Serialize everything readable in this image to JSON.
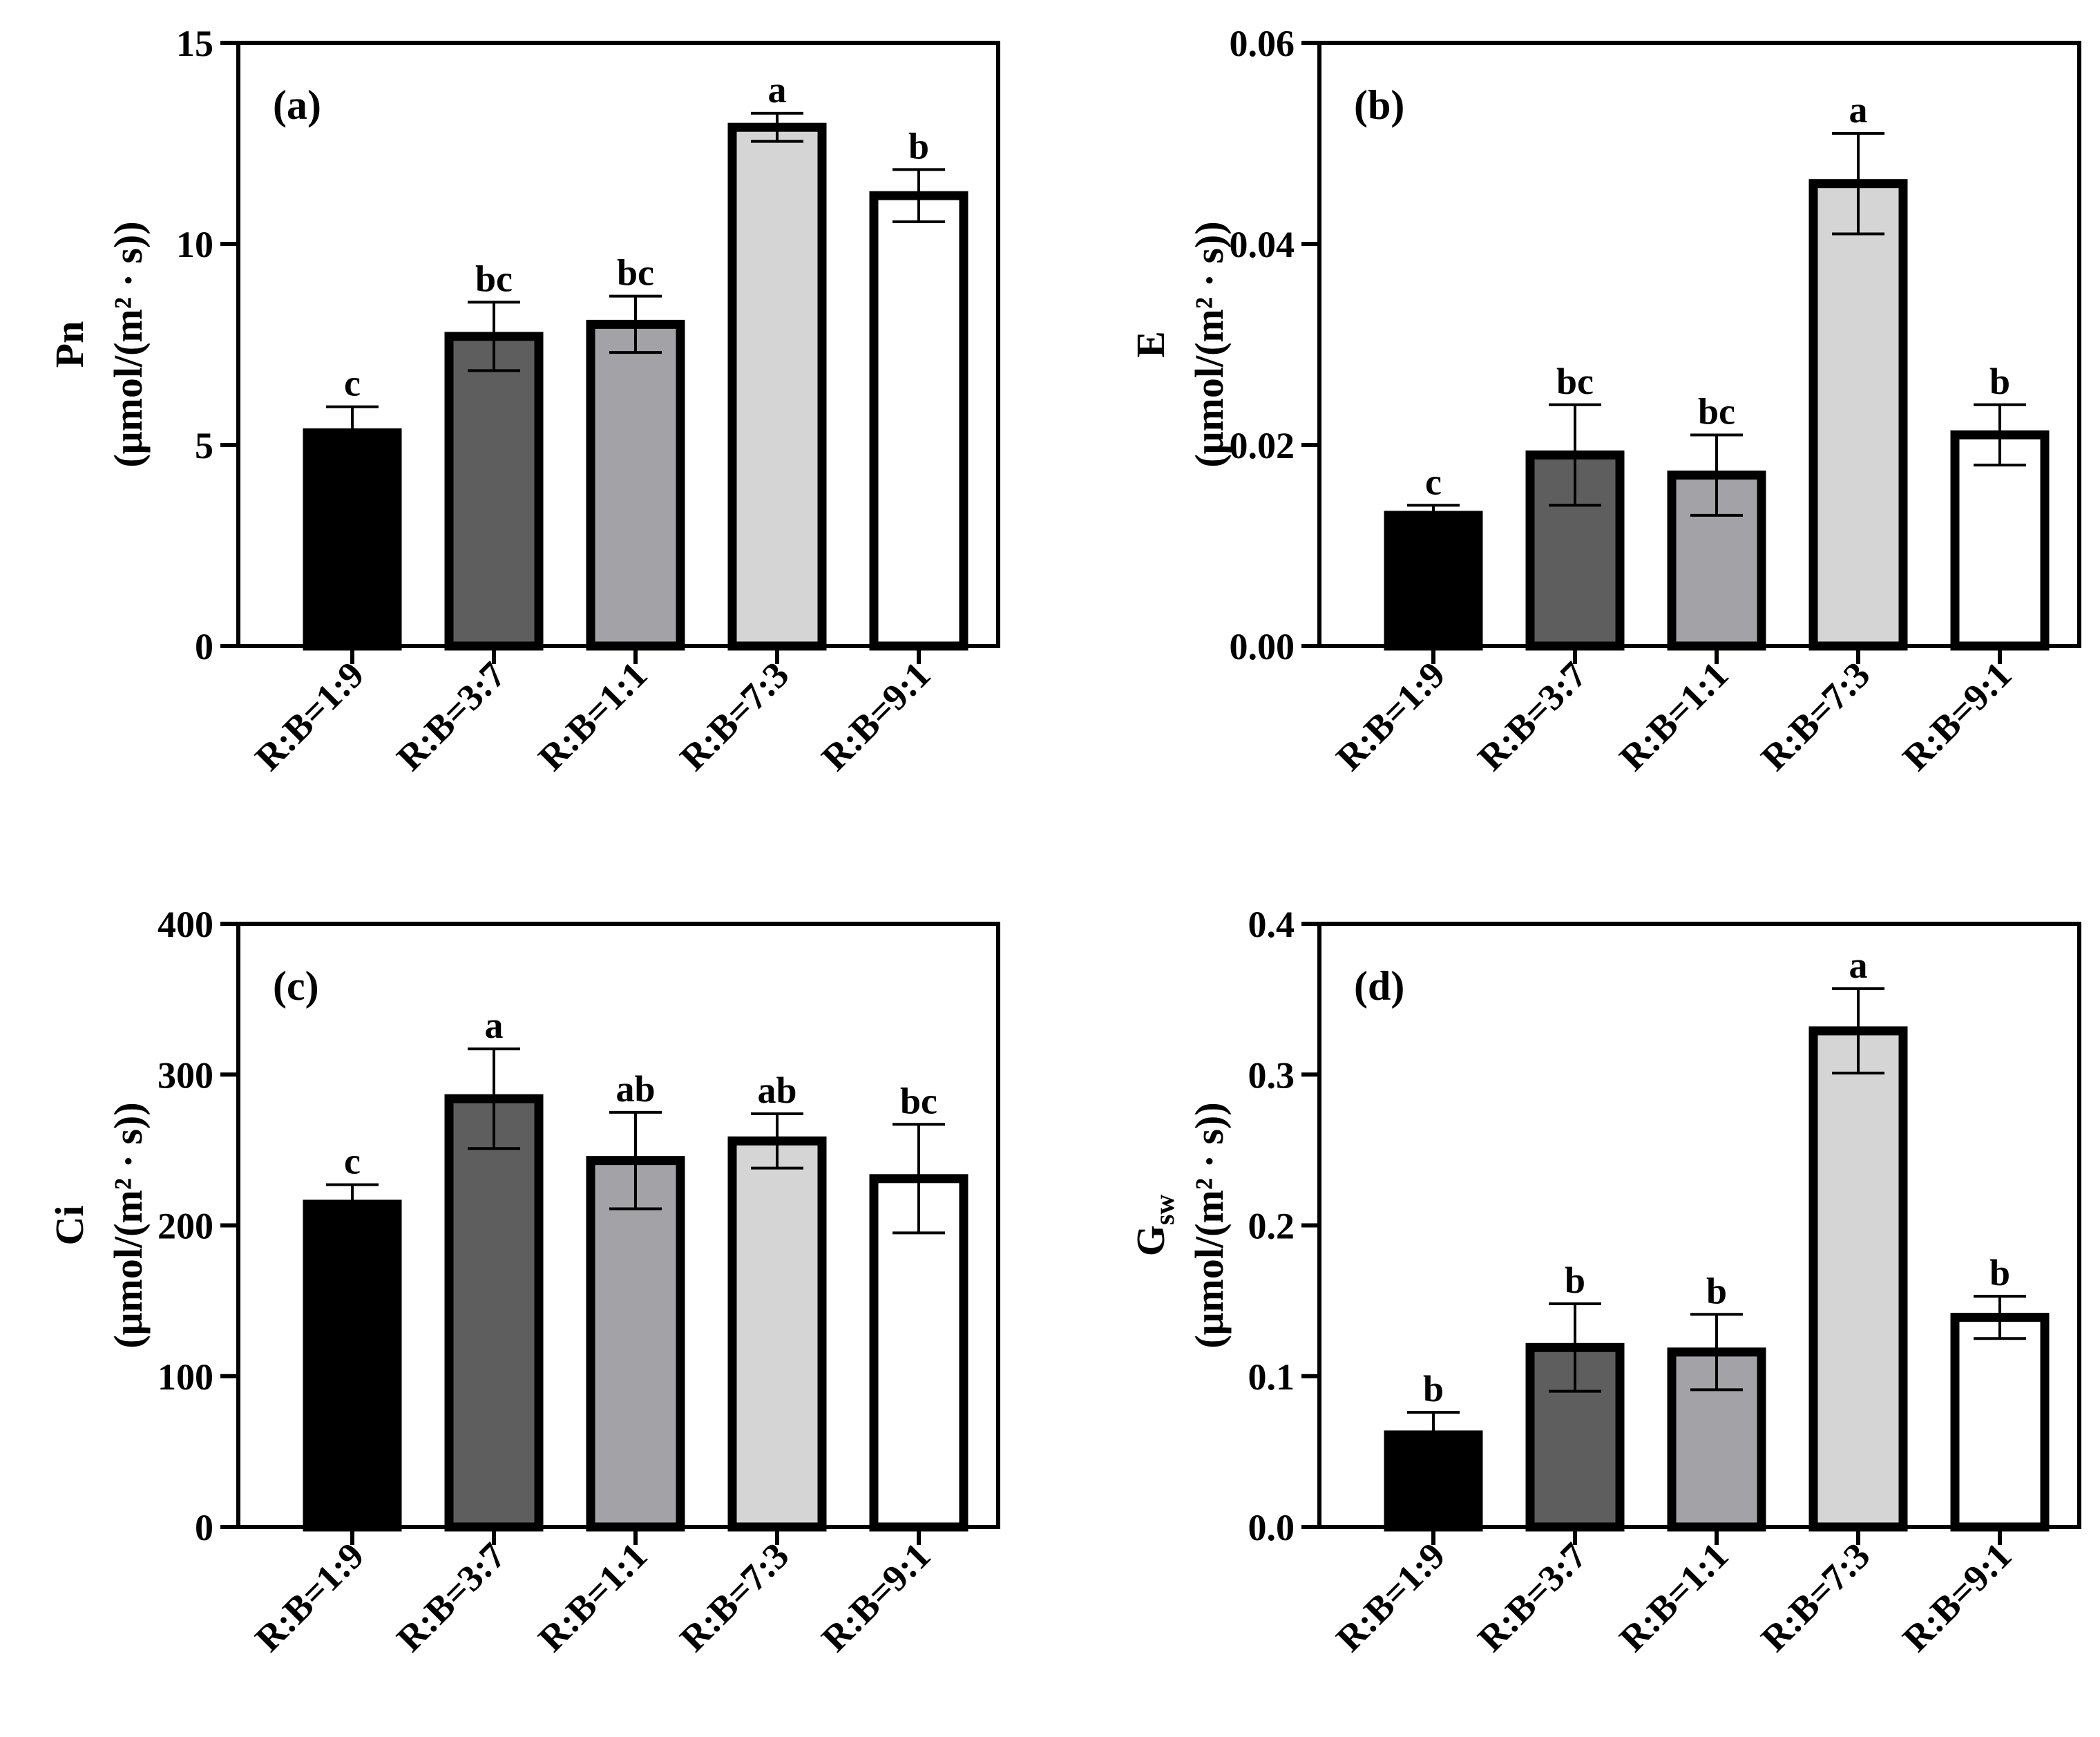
{
  "colors": {
    "axis": "#000000",
    "bar_fills": [
      "#000000",
      "#5e5e5e",
      "#a3a2a7",
      "#d5d5d5",
      "#ffffff"
    ],
    "bar_stroke": "#000000"
  },
  "chart_data": [
    {
      "type": "bar",
      "panel_label": "(a)",
      "ylabel": "Pn",
      "yunit": "(μmol/(m² · s))",
      "ylim": [
        0,
        15
      ],
      "yticks": [
        0,
        5,
        10,
        15
      ],
      "ytick_labels": [
        "0",
        "5",
        "10",
        "15"
      ],
      "categories": [
        "R:B=1:9",
        "R:B=3:7",
        "R:B=1:1",
        "R:B=7:3",
        "R:B=9:1"
      ],
      "values": [
        5.3,
        7.7,
        8.0,
        12.9,
        11.2
      ],
      "errors": [
        0.65,
        0.85,
        0.7,
        0.35,
        0.65
      ],
      "significance": [
        "c",
        "bc",
        "bc",
        "a",
        "b"
      ]
    },
    {
      "type": "bar",
      "panel_label": "(b)",
      "ylabel": "E",
      "yunit": "(μmol/(m² · s))",
      "ylim": [
        0,
        0.06
      ],
      "yticks": [
        0,
        0.02,
        0.04,
        0.06
      ],
      "ytick_labels": [
        "0.00",
        "0.02",
        "0.04",
        "0.06"
      ],
      "categories": [
        "R:B=1:9",
        "R:B=3:7",
        "R:B=1:1",
        "R:B=7:3",
        "R:B=9:1"
      ],
      "values": [
        0.013,
        0.019,
        0.017,
        0.046,
        0.021
      ],
      "errors": [
        0.001,
        0.005,
        0.004,
        0.005,
        0.003
      ],
      "significance": [
        "c",
        "bc",
        "bc",
        "a",
        "b"
      ]
    },
    {
      "type": "bar",
      "panel_label": "(c)",
      "ylabel": "Ci",
      "yunit": "(μmol/(m² · s))",
      "ylim": [
        0,
        400
      ],
      "yticks": [
        0,
        100,
        200,
        300,
        400
      ],
      "ytick_labels": [
        "0",
        "100",
        "200",
        "300",
        "400"
      ],
      "categories": [
        "R:B=1:9",
        "R:B=3:7",
        "R:B=1:1",
        "R:B=7:3",
        "R:B=9:1"
      ],
      "values": [
        214,
        284,
        243,
        256,
        231
      ],
      "errors": [
        13,
        33,
        32,
        18,
        36
      ],
      "significance": [
        "c",
        "a",
        "ab",
        "ab",
        "bc"
      ]
    },
    {
      "type": "bar",
      "panel_label": "(d)",
      "ylabel": "G",
      "ylabel_sub": "sw",
      "yunit": "(μmol/(m² · s))",
      "ylim": [
        0,
        0.4
      ],
      "yticks": [
        0,
        0.1,
        0.2,
        0.3,
        0.4
      ],
      "ytick_labels": [
        "0.0",
        "0.1",
        "0.2",
        "0.3",
        "0.4"
      ],
      "categories": [
        "R:B=1:9",
        "R:B=3:7",
        "R:B=1:1",
        "R:B=7:3",
        "R:B=9:1"
      ],
      "values": [
        0.061,
        0.119,
        0.116,
        0.329,
        0.139
      ],
      "errors": [
        0.015,
        0.029,
        0.025,
        0.028,
        0.014
      ],
      "significance": [
        "b",
        "b",
        "b",
        "a",
        "b"
      ]
    }
  ]
}
